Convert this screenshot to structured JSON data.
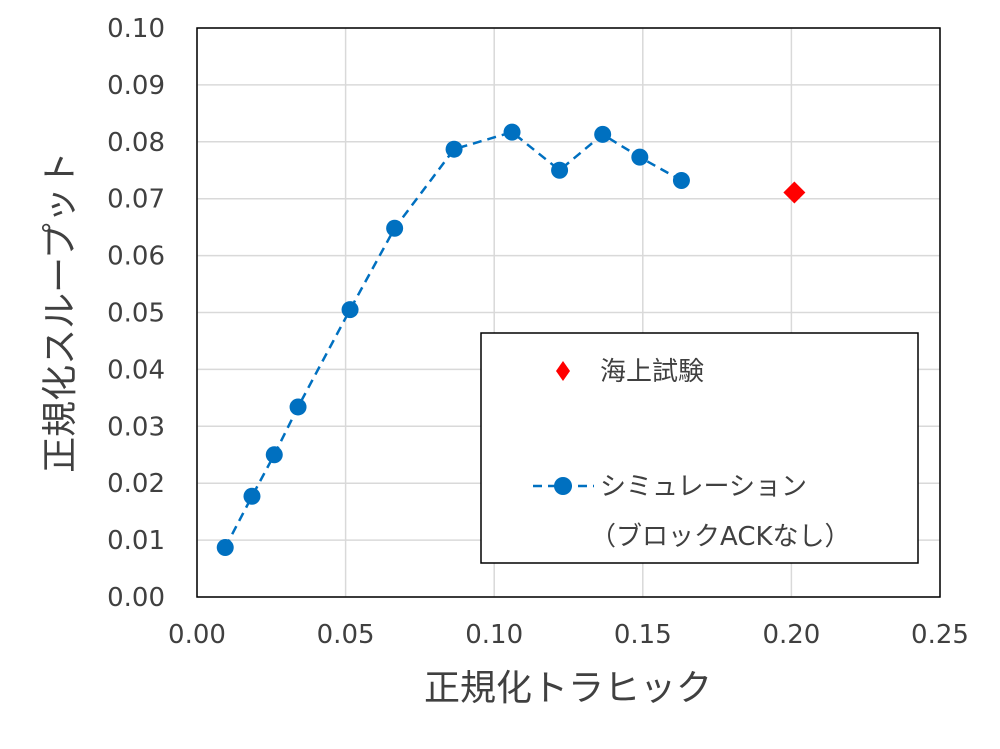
{
  "chart_data": {
    "type": "scatter",
    "xlabel": "正規化トラヒック",
    "ylabel": "正規化スループット",
    "xlim": [
      0,
      0.25
    ],
    "ylim": [
      0,
      0.1
    ],
    "x_ticks": [
      "0.00",
      "0.05",
      "0.10",
      "0.15",
      "0.20",
      "0.25"
    ],
    "y_ticks": [
      "0.00",
      "0.01",
      "0.02",
      "0.03",
      "0.04",
      "0.05",
      "0.06",
      "0.07",
      "0.08",
      "0.09",
      "0.10"
    ],
    "grid": true,
    "legend_position": "bottom-right",
    "series": [
      {
        "name": "海上試験",
        "marker": "diamond",
        "line": "none",
        "color": "#ff0000",
        "points": [
          [
            0.201,
            0.0711
          ]
        ]
      },
      {
        "name": "シミュレーション",
        "name_line2": "（ブロックACKなし）",
        "marker": "circle",
        "line": "dashed",
        "color": "#0070c0",
        "points": [
          [
            0.0095,
            0.0087
          ],
          [
            0.0185,
            0.0177
          ],
          [
            0.026,
            0.025
          ],
          [
            0.034,
            0.0334
          ],
          [
            0.0515,
            0.0505
          ],
          [
            0.0665,
            0.0648
          ],
          [
            0.0865,
            0.0787
          ],
          [
            0.106,
            0.0817
          ],
          [
            0.122,
            0.075
          ],
          [
            0.1365,
            0.0813
          ],
          [
            0.149,
            0.0773
          ],
          [
            0.163,
            0.0732
          ]
        ]
      }
    ]
  }
}
